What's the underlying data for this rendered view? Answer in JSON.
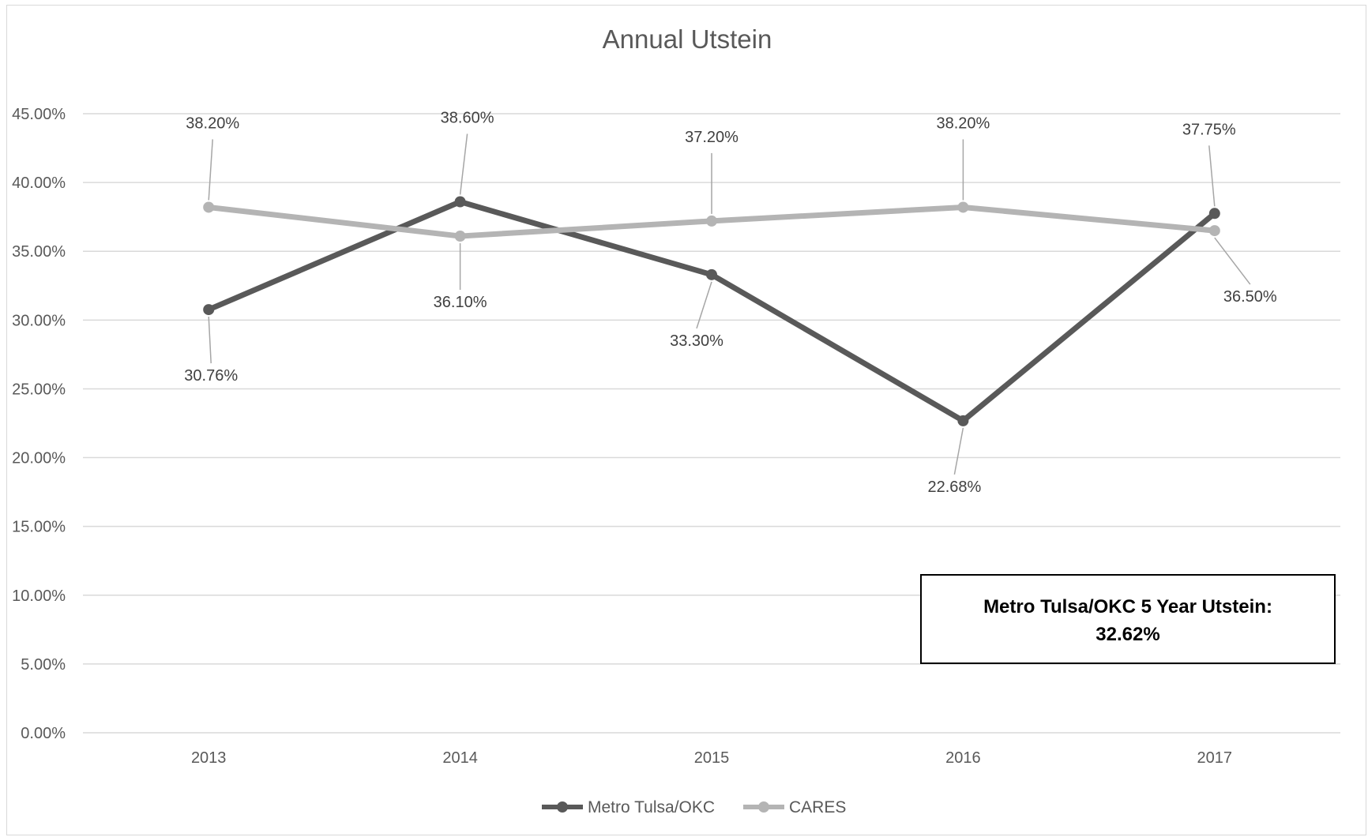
{
  "chart_data": {
    "type": "line",
    "title": "Annual Utstein",
    "xlabel": "",
    "ylabel": "",
    "categories": [
      "2013",
      "2014",
      "2015",
      "2016",
      "2017"
    ],
    "ylim": [
      0,
      45
    ],
    "yticks": [
      0,
      5,
      10,
      15,
      20,
      25,
      30,
      35,
      40,
      45
    ],
    "ytick_labels": [
      "0.00%",
      "5.00%",
      "10.00%",
      "15.00%",
      "20.00%",
      "25.00%",
      "30.00%",
      "35.00%",
      "40.00%",
      "45.00%"
    ],
    "grid": true,
    "legend_position": "bottom",
    "series": [
      {
        "name": "Metro Tulsa/OKC",
        "color": "#595959",
        "values": [
          30.76,
          38.6,
          33.3,
          22.68,
          37.75
        ],
        "labels": [
          "30.76%",
          "38.60%",
          "33.30%",
          "22.68%",
          "37.75%"
        ]
      },
      {
        "name": "CARES",
        "color": "#b4b4b4",
        "values": [
          38.2,
          36.1,
          37.2,
          38.2,
          36.5
        ],
        "labels": [
          "38.20%",
          "36.10%",
          "37.20%",
          "38.20%",
          "36.50%"
        ]
      }
    ],
    "annotation": {
      "line1": "Metro Tulsa/OKC 5 Year Utstein:",
      "line2": "32.62%"
    }
  }
}
